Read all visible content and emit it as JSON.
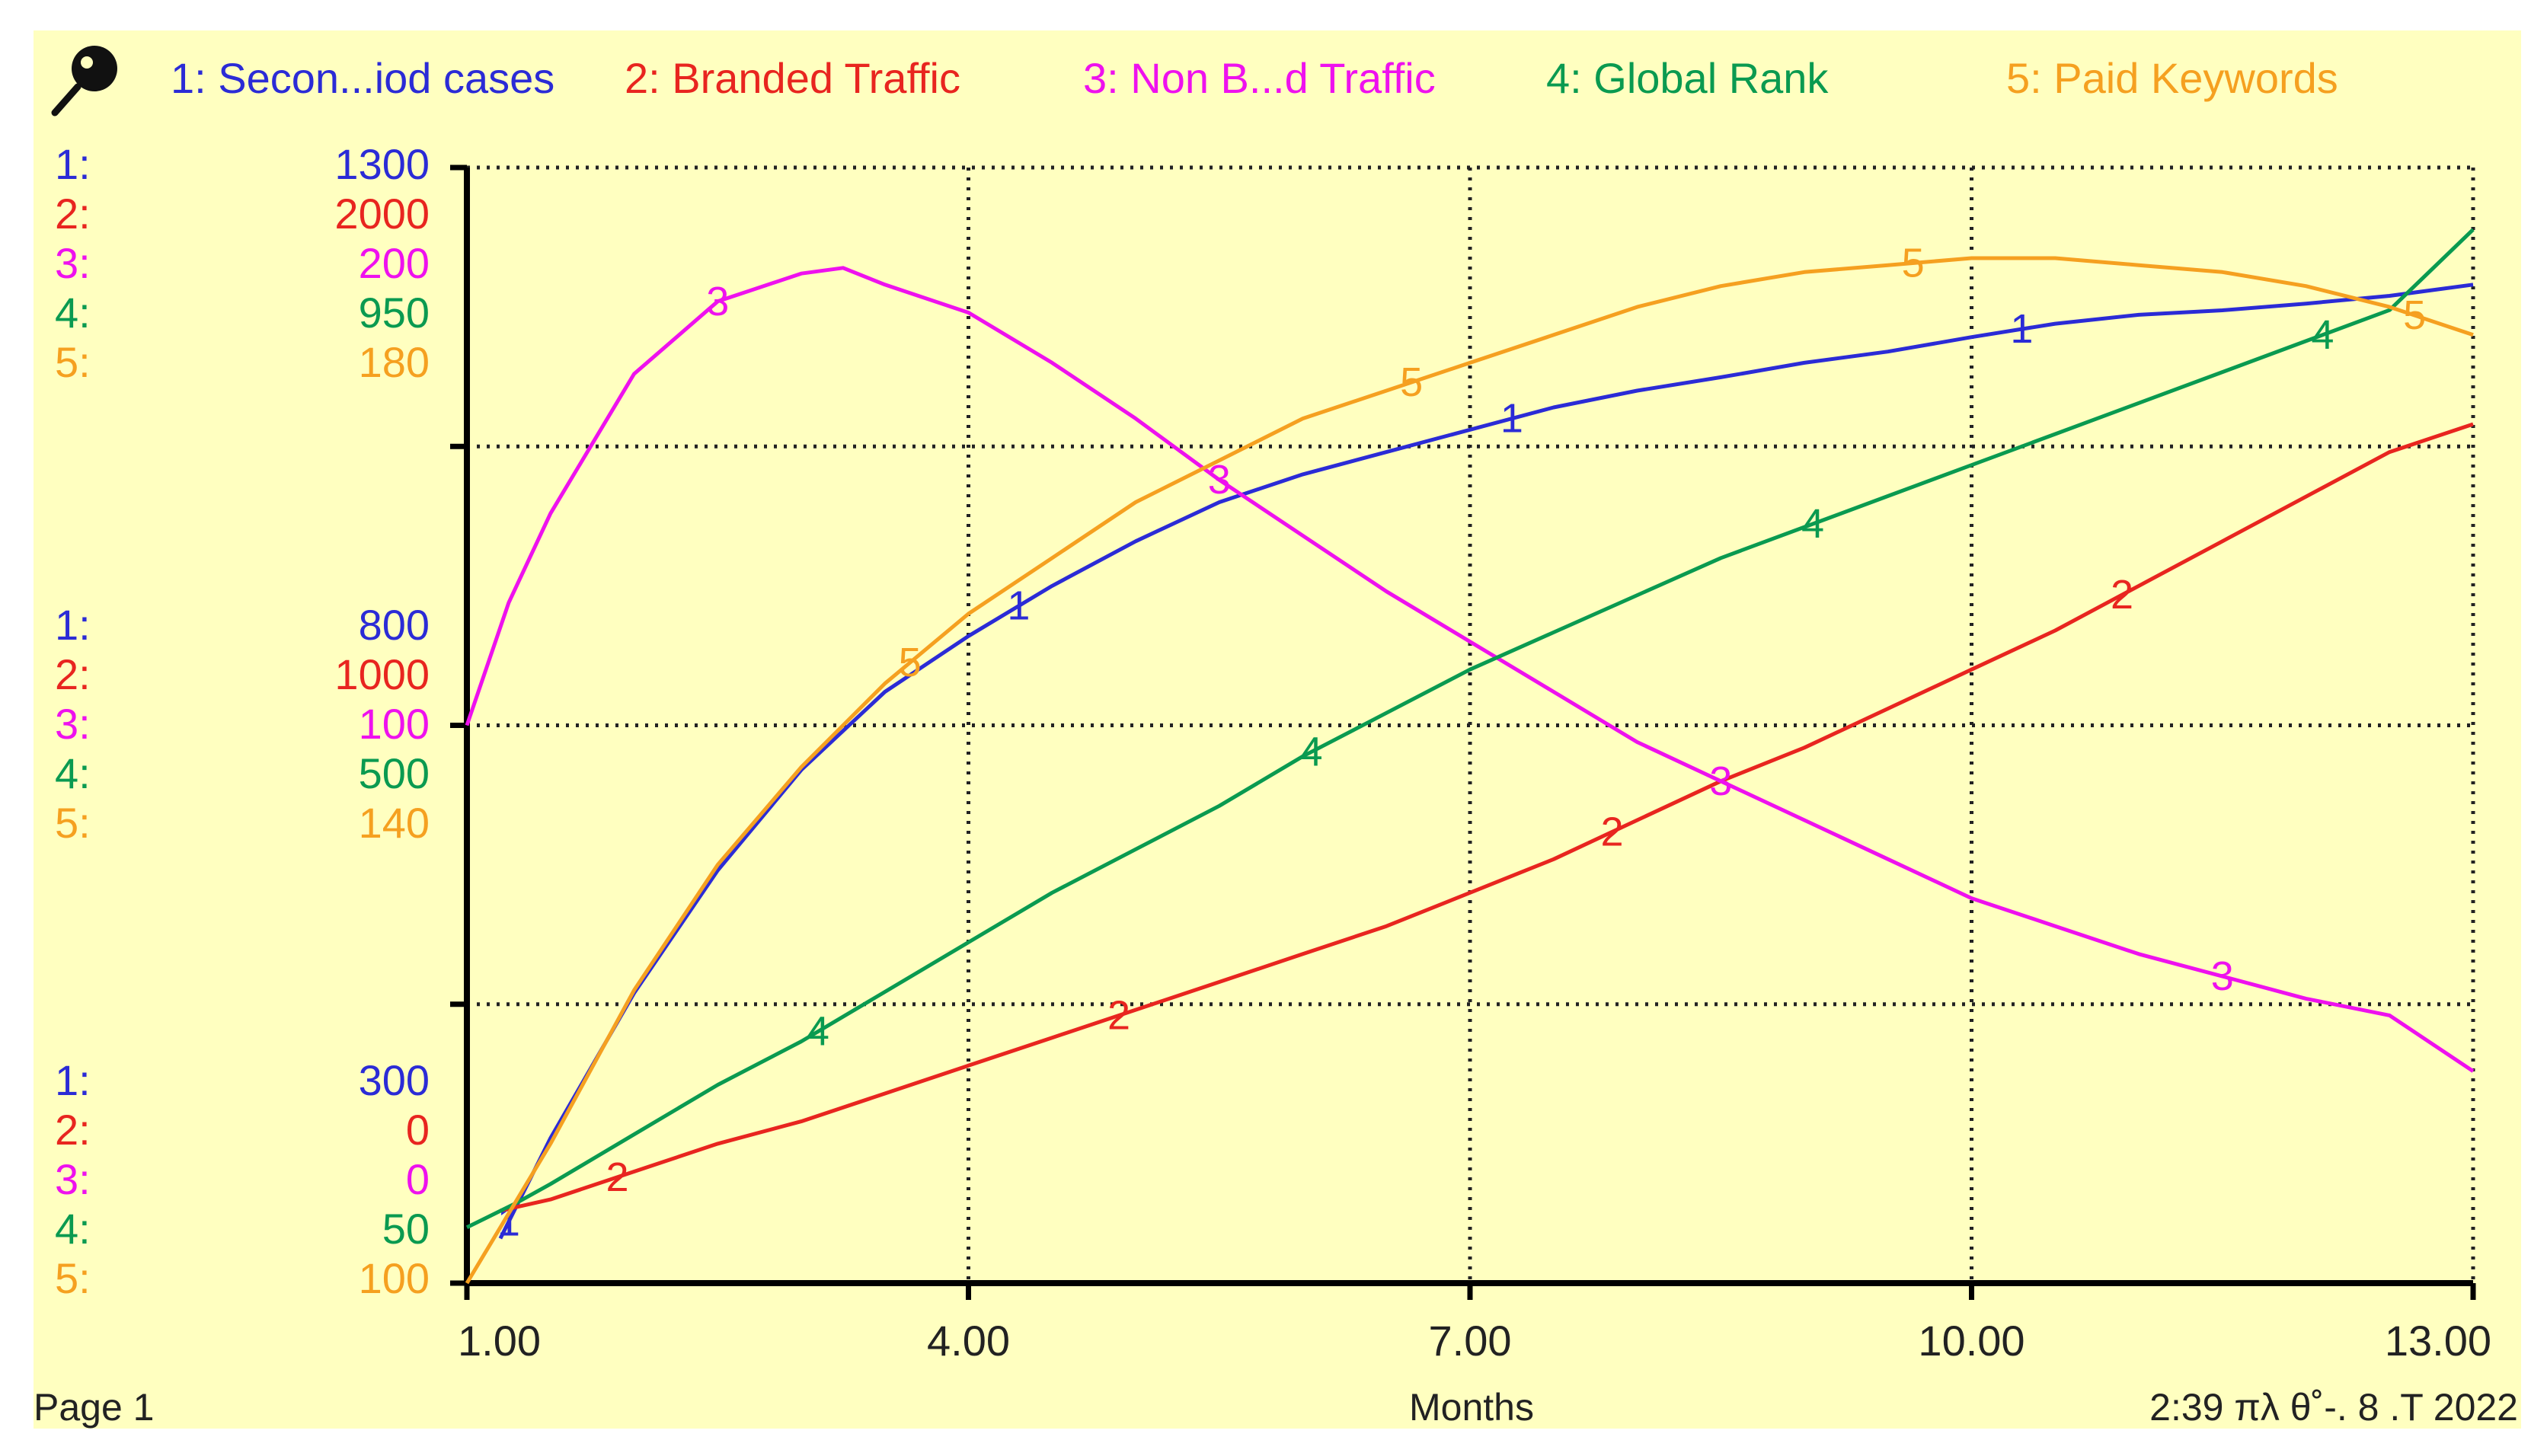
{
  "legend": {
    "tool_icon": "magnifier-pin-icon",
    "items": [
      {
        "text": "1: Secon...iod cases",
        "color": "#2b2bd6"
      },
      {
        "text": "2: Branded  Traffic",
        "color": "#e8251f"
      },
      {
        "text": "3: Non B...d  Traffic",
        "color": "#ee11ee"
      },
      {
        "text": "4: Global Rank",
        "color": "#0a9a50"
      },
      {
        "text": "5: Paid  Keywords",
        "color": "#f5a020"
      }
    ]
  },
  "scales": {
    "top": [
      {
        "prefix": "1:",
        "value": "1300",
        "color": "#2b2bd6"
      },
      {
        "prefix": "2:",
        "value": "2000",
        "color": "#e8251f"
      },
      {
        "prefix": "3:",
        "value": "200",
        "color": "#ee11ee"
      },
      {
        "prefix": "4:",
        "value": "950",
        "color": "#0a9a50"
      },
      {
        "prefix": "5:",
        "value": "180",
        "color": "#f5a020"
      }
    ],
    "mid": [
      {
        "prefix": "1:",
        "value": "800",
        "color": "#2b2bd6"
      },
      {
        "prefix": "2:",
        "value": "1000",
        "color": "#e8251f"
      },
      {
        "prefix": "3:",
        "value": "100",
        "color": "#ee11ee"
      },
      {
        "prefix": "4:",
        "value": "500",
        "color": "#0a9a50"
      },
      {
        "prefix": "5:",
        "value": "140",
        "color": "#f5a020"
      }
    ],
    "bottom": [
      {
        "prefix": "1:",
        "value": "300",
        "color": "#2b2bd6"
      },
      {
        "prefix": "2:",
        "value": "0",
        "color": "#e8251f"
      },
      {
        "prefix": "3:",
        "value": "0",
        "color": "#ee11ee"
      },
      {
        "prefix": "4:",
        "value": "50",
        "color": "#0a9a50"
      },
      {
        "prefix": "5:",
        "value": "100",
        "color": "#f5a020"
      }
    ]
  },
  "footer": {
    "page": "Page 1",
    "timestamp": "2:39 πλ   θ˚-. 8 .T 2022"
  },
  "chart_data": {
    "type": "line",
    "xlabel": "Months",
    "xlim": [
      1,
      13
    ],
    "x_ticks": [
      "1.00",
      "4.00",
      "7.00",
      "10.00",
      "13.00"
    ],
    "grid": true,
    "series": [
      {
        "name": "1: Secon...iod cases",
        "marker": "1",
        "color": "#2b2bd6",
        "ylim": [
          300,
          1300
        ],
        "x": [
          1.2,
          1.5,
          2,
          2.5,
          3,
          3.5,
          4,
          4.5,
          5,
          5.5,
          6,
          6.5,
          7,
          7.5,
          8,
          8.5,
          9,
          9.5,
          10,
          10.5,
          11,
          11.5,
          12,
          12.5,
          13
        ],
        "y": [
          340,
          430,
          560,
          670,
          760,
          830,
          880,
          925,
          965,
          1000,
          1025,
          1045,
          1065,
          1085,
          1100,
          1112,
          1125,
          1135,
          1148,
          1160,
          1168,
          1172,
          1178,
          1185,
          1195
        ],
        "label_x": [
          1.25,
          4.3,
          7.25,
          10.3
        ]
      },
      {
        "name": "2: Branded  Traffic",
        "marker": "2",
        "color": "#e8251f",
        "ylim": [
          0,
          2000
        ],
        "x": [
          1.2,
          1.5,
          2,
          2.5,
          3,
          3.5,
          4,
          4.5,
          5,
          5.5,
          6,
          6.5,
          7,
          7.5,
          8,
          8.5,
          9,
          9.5,
          10,
          10.5,
          11,
          11.5,
          12,
          12.5,
          13
        ],
        "y": [
          130,
          150,
          200,
          250,
          290,
          340,
          390,
          440,
          490,
          540,
          590,
          640,
          700,
          760,
          830,
          900,
          960,
          1030,
          1100,
          1170,
          1250,
          1330,
          1410,
          1490,
          1540
        ],
        "label_x": [
          1.9,
          4.9,
          7.85,
          10.9
        ]
      },
      {
        "name": "3: Non B...d  Traffic",
        "marker": "3",
        "color": "#ee11ee",
        "ylim": [
          0,
          200
        ],
        "x": [
          1,
          1.25,
          1.5,
          2,
          2.5,
          3,
          3.25,
          3.5,
          4,
          4.5,
          5,
          5.5,
          6,
          6.5,
          7,
          7.5,
          8,
          8.5,
          9,
          9.5,
          10,
          10.5,
          11,
          11.5,
          12,
          12.5,
          13
        ],
        "y": [
          100,
          122,
          138,
          163,
          176,
          181,
          182,
          179,
          174,
          165,
          155,
          144,
          134,
          124,
          115,
          106,
          97,
          90,
          83,
          76,
          69,
          64,
          59,
          55,
          51,
          48,
          38
        ],
        "label_x": [
          2.5,
          5.5,
          8.5,
          11.5
        ]
      },
      {
        "name": "4: Global Rank",
        "marker": "4",
        "color": "#0a9a50",
        "ylim": [
          50,
          950
        ],
        "x": [
          1,
          1.3,
          1.5,
          2,
          2.5,
          3,
          3.5,
          4,
          4.5,
          5,
          5.5,
          6,
          6.5,
          7,
          7.5,
          8,
          8.5,
          9,
          9.5,
          10,
          10.5,
          11,
          11.5,
          12,
          12.5,
          13
        ],
        "y": [
          95,
          115,
          130,
          170,
          210,
          245,
          285,
          325,
          365,
          400,
          435,
          475,
          510,
          545,
          575,
          605,
          635,
          660,
          685,
          710,
          735,
          760,
          785,
          810,
          835,
          900
        ],
        "label_x": [
          3.1,
          6.05,
          9.05,
          12.1
        ]
      },
      {
        "name": "5: Paid  Keywords",
        "marker": "5",
        "color": "#f5a020",
        "ylim": [
          100,
          180
        ],
        "x": [
          1,
          1.2,
          1.5,
          2,
          2.5,
          3,
          3.5,
          4,
          4.5,
          5,
          5.5,
          6,
          6.5,
          7,
          7.5,
          8,
          8.5,
          9,
          9.5,
          10,
          10.5,
          11,
          11.5,
          12,
          12.5,
          13
        ],
        "y": [
          100,
          104,
          110,
          121,
          130,
          137,
          143,
          148,
          152,
          156,
          159,
          162,
          164,
          166,
          168,
          170,
          171.5,
          172.5,
          173,
          173.5,
          173.5,
          173,
          172.5,
          171.5,
          170,
          168
        ],
        "label_x": [
          3.65,
          6.65,
          9.65,
          12.65
        ]
      }
    ]
  }
}
